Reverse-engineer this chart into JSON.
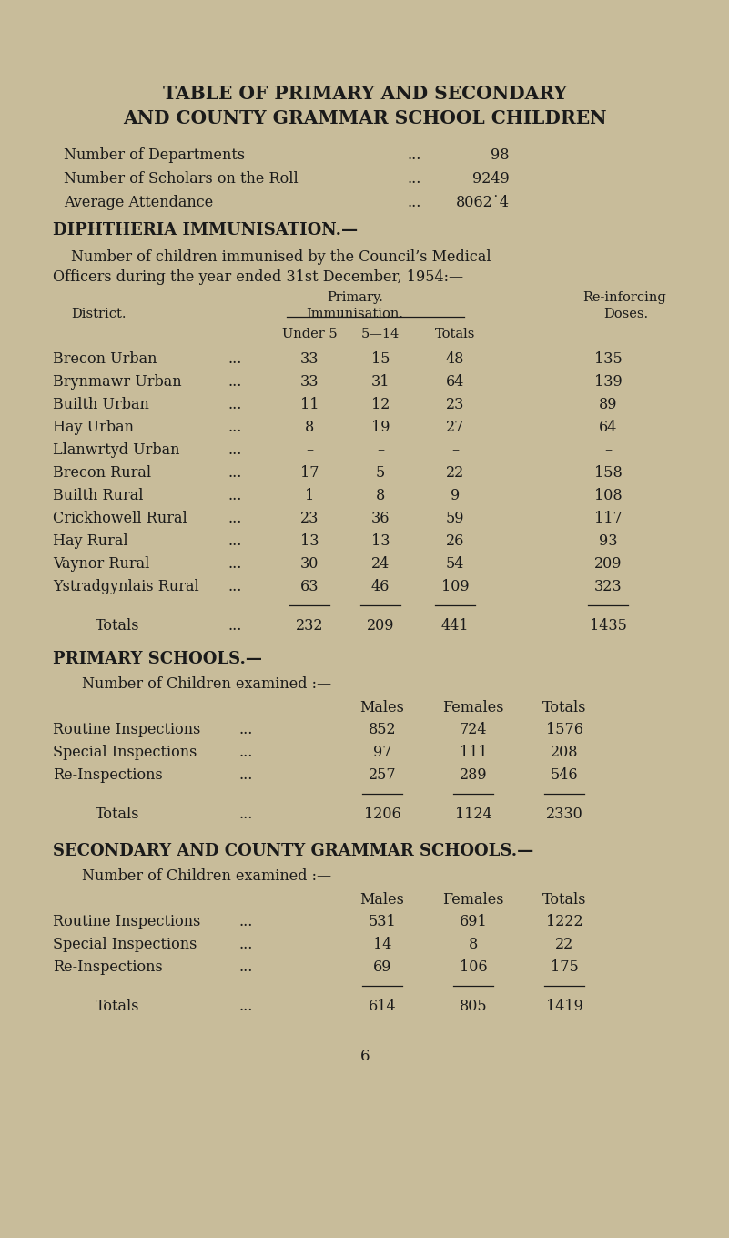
{
  "bg_color": "#c8bc9a",
  "text_color": "#1a1a1a",
  "title_line1": "TABLE OF PRIMARY AND SECONDARY",
  "title_line2": "AND COUNTY GRAMMAR SCHOOL CHILDREN",
  "stats": [
    [
      "Number of Departments",
      "...",
      "98"
    ],
    [
      "Number of Scholars on the Roll",
      "...",
      "9249"
    ],
    [
      "Average Attendance",
      "...",
      "8062˙4"
    ]
  ],
  "diph_header": "DIPHTHERIA IMMUNISATION.—",
  "diph_intro_line1": "Number of children immunised by the Council’s Medical",
  "diph_intro_line2": "Officers during the year ended 31st December, 1954:—",
  "diph_rows": [
    [
      "Brecon Urban",
      "...",
      "33",
      "15",
      "48",
      "135"
    ],
    [
      "Brynmawr Urban",
      "...",
      "33",
      "31",
      "64",
      "139"
    ],
    [
      "Builth Urban",
      "...",
      "11",
      "12",
      "23",
      "89"
    ],
    [
      "Hay Urban",
      "...",
      "8",
      "19",
      "27",
      "64"
    ],
    [
      "Llanwrtyd Urban",
      "...",
      "–",
      "–",
      "–",
      "–"
    ],
    [
      "Brecon Rural",
      "...",
      "17",
      "5",
      "22",
      "158"
    ],
    [
      "Builth Rural",
      "...",
      "1",
      "8",
      "9",
      "108"
    ],
    [
      "Crickhowell Rural",
      "...",
      "23",
      "36",
      "59",
      "117"
    ],
    [
      "Hay Rural",
      "...",
      "13",
      "13",
      "26",
      "93"
    ],
    [
      "Vaynor Rural",
      "...",
      "30",
      "24",
      "54",
      "209"
    ],
    [
      "Ystradgynlais Rural",
      "...",
      "63",
      "46",
      "109",
      "323"
    ]
  ],
  "diph_totals": [
    "Totals",
    "...",
    "232",
    "209",
    "441",
    "1435"
  ],
  "primary_header": "PRIMARY SCHOOLS.—",
  "primary_intro": "Number of Children examined :—",
  "primary_rows": [
    [
      "Routine Inspections",
      "...",
      "852",
      "724",
      "1576"
    ],
    [
      "Special Inspections",
      "...",
      "97",
      "111",
      "208"
    ],
    [
      "Re-Inspections",
      "...",
      "257",
      "289",
      "546"
    ]
  ],
  "primary_totals": [
    "Totals",
    "...",
    "1206",
    "1124",
    "2330"
  ],
  "secondary_header": "SECONDARY AND COUNTY GRAMMAR SCHOOLS.—",
  "secondary_intro": "Number of Children examined :—",
  "secondary_rows": [
    [
      "Routine Inspections",
      "...",
      "531",
      "691",
      "1222"
    ],
    [
      "Special Inspections",
      "...",
      "14",
      "8",
      "22"
    ],
    [
      "Re-Inspections",
      "...",
      "69",
      "106",
      "175"
    ]
  ],
  "secondary_totals": [
    "Totals",
    "...",
    "614",
    "805",
    "1419"
  ],
  "page_number": "6"
}
